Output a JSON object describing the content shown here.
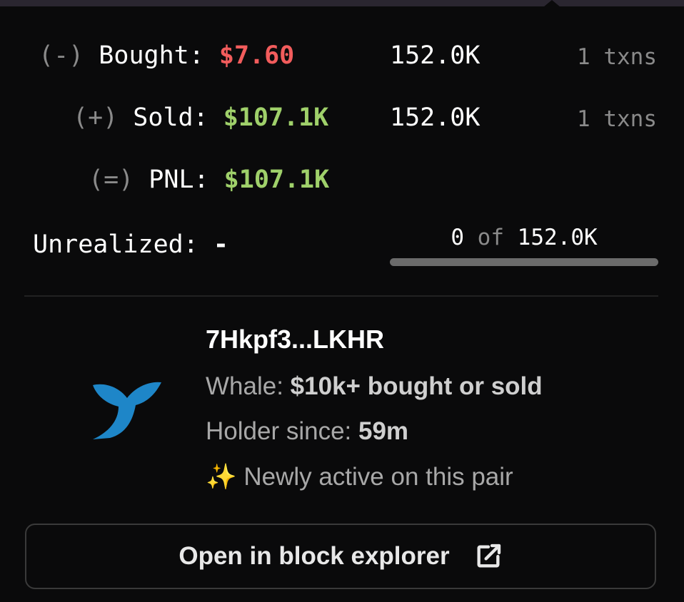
{
  "stats": {
    "bought": {
      "sign": "(-)",
      "label": "Bought:",
      "value": "$7.60",
      "amount": "152.0K",
      "txns": "1 txns"
    },
    "sold": {
      "sign": "(+)",
      "label": "Sold:",
      "value": "$107.1K",
      "amount": "152.0K",
      "txns": "1 txns"
    },
    "pnl": {
      "sign": "(=)",
      "label": "PNL:",
      "value": "$107.1K"
    },
    "unrealized": {
      "label": "Unrealized:",
      "value": "-",
      "held": "0",
      "of": "of",
      "total": "152.0K",
      "progress_fraction": 0
    }
  },
  "trader": {
    "address": "7Hkpf3...LKHR",
    "icon": "whale-icon",
    "whale_label": "Whale:",
    "whale_value": "$10k+ bought or sold",
    "holder_label": "Holder since:",
    "holder_value": "59m",
    "new_icon": "sparkles-icon",
    "new_text": "Newly active on this pair"
  },
  "button": {
    "label": "Open in block explorer",
    "icon": "external-link-icon"
  },
  "colors": {
    "negative": "#f25c5c",
    "positive": "#9fd06a",
    "background": "#0a0a0b"
  }
}
